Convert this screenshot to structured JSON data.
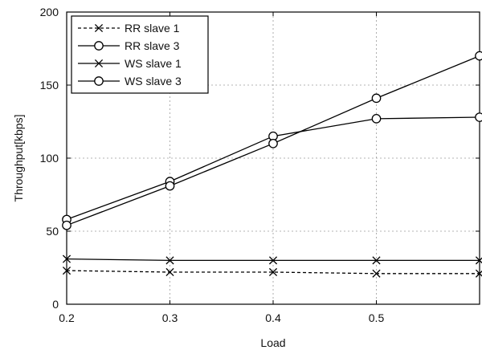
{
  "chart_data": {
    "type": "line",
    "title": "",
    "xlabel": "Load",
    "ylabel": "Throughput[kbps]",
    "xlim": [
      0.2,
      0.6
    ],
    "ylim": [
      0,
      200
    ],
    "xticks": [
      0.2,
      0.3,
      0.4,
      0.5
    ],
    "xtick_labels": [
      "0.2",
      "0.3",
      "0.4",
      "0.5"
    ],
    "yticks": [
      0,
      50,
      100,
      150,
      200
    ],
    "ytick_labels": [
      "0",
      "50",
      "100",
      "150",
      "200"
    ],
    "grid": true,
    "legend_position": "top-left",
    "x": [
      0.2,
      0.3,
      0.4,
      0.5,
      0.6
    ],
    "series": [
      {
        "name": "RR slave 1",
        "values": [
          23,
          22,
          22,
          21,
          21
        ],
        "line_style": "dashed",
        "marker": "x",
        "color": "#000000"
      },
      {
        "name": "RR slave 3",
        "values": [
          58,
          84,
          115,
          127,
          128
        ],
        "line_style": "solid",
        "marker": "circle",
        "color": "#000000"
      },
      {
        "name": "WS slave 1",
        "values": [
          31,
          30,
          30,
          30,
          30
        ],
        "line_style": "solid",
        "marker": "x",
        "color": "#000000"
      },
      {
        "name": "WS slave 3",
        "values": [
          54,
          81,
          110,
          141,
          170
        ],
        "line_style": "solid",
        "marker": "circle",
        "color": "#000000"
      }
    ]
  }
}
